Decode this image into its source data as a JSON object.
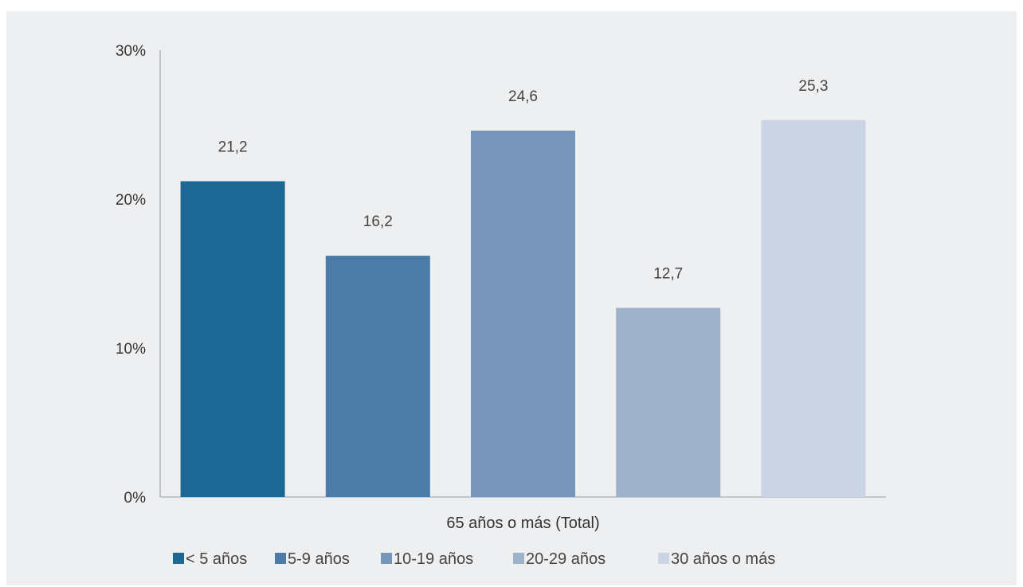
{
  "chart_data": {
    "type": "bar",
    "title": "",
    "xlabel": "",
    "ylabel": "",
    "categories": [
      "65 años o más (Total)"
    ],
    "series": [
      {
        "name": "< 5 años",
        "values": [
          21.2
        ],
        "label": "21,2",
        "color": "#1b6894"
      },
      {
        "name": "5-9 años",
        "values": [
          16.2
        ],
        "label": "16,2",
        "color": "#4d7ba7"
      },
      {
        "name": "10-19 años",
        "values": [
          24.6
        ],
        "label": "24,6",
        "color": "#7795b9"
      },
      {
        "name": "20-29 años",
        "values": [
          12.7
        ],
        "label": "12,7",
        "color": "#a0b2cb"
      },
      {
        "name": "30 años o más",
        "values": [
          25.3
        ],
        "label": "25,3",
        "color": "#cbd4e2"
      }
    ],
    "yticks": [
      "0%",
      "10%",
      "20%",
      "30%"
    ],
    "ylim": [
      0,
      30
    ],
    "grid": false,
    "legend_position": "bottom"
  }
}
